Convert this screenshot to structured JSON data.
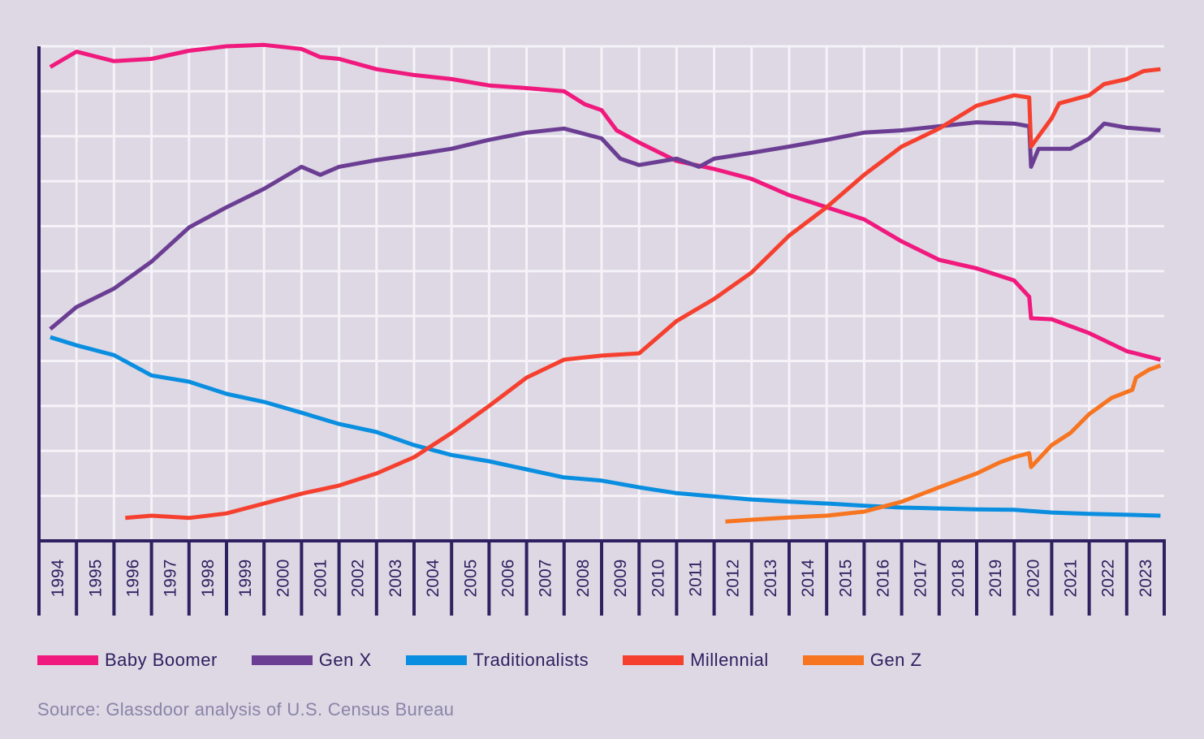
{
  "chart_data": {
    "type": "line",
    "title": "",
    "xlabel": "",
    "ylabel": "",
    "xlim": [
      1994,
      2024
    ],
    "ylim": [
      0,
      11
    ],
    "grid": true,
    "legend_position": "bottom",
    "x_tick_labels": [
      "1994",
      "1995",
      "1996",
      "1997",
      "1998",
      "1999",
      "2000",
      "2001",
      "2002",
      "2003",
      "2004",
      "2005",
      "2006",
      "2007",
      "2008",
      "2009",
      "2010",
      "2011",
      "2012",
      "2013",
      "2014",
      "2015",
      "2016",
      "2017",
      "2018",
      "2019",
      "2020",
      "2021",
      "2022",
      "2023"
    ],
    "series": [
      {
        "name": "Baby Boomer",
        "color": "#f0197d",
        "x": [
          1994.3,
          1995.0,
          1996.0,
          1997.0,
          1998.0,
          1999.0,
          2000.0,
          2001.0,
          2001.5,
          2002.0,
          2003.0,
          2004.0,
          2005.0,
          2006.0,
          2007.0,
          2008.0,
          2008.55,
          2009.0,
          2009.4,
          2010.0,
          2011.0,
          2012.0,
          2013.0,
          2014.0,
          2015.0,
          2016.0,
          2017.0,
          2018.0,
          2019.0,
          2020.0,
          2020.4,
          2020.45,
          2021.0,
          2022.0,
          2023.0,
          2023.9
        ],
        "y": [
          10.54,
          10.88,
          10.67,
          10.72,
          10.9,
          11.0,
          11.03,
          10.94,
          10.76,
          10.72,
          10.49,
          10.36,
          10.27,
          10.13,
          10.07,
          10.0,
          9.71,
          9.58,
          9.13,
          8.86,
          8.45,
          8.27,
          8.05,
          7.69,
          7.42,
          7.15,
          6.66,
          6.25,
          6.06,
          5.79,
          5.43,
          4.95,
          4.93,
          4.62,
          4.22,
          4.03
        ]
      },
      {
        "name": "Gen X",
        "color": "#6b3d93",
        "x": [
          1994.3,
          1995.0,
          1996.0,
          1997.0,
          1998.0,
          1999.0,
          2000.0,
          2001.0,
          2001.5,
          2002.0,
          2003.0,
          2004.0,
          2005.0,
          2006.0,
          2007.0,
          2008.0,
          2009.0,
          2009.5,
          2010.0,
          2011.0,
          2011.6,
          2012.0,
          2013.0,
          2014.0,
          2015.0,
          2016.0,
          2017.0,
          2018.0,
          2019.0,
          2020.0,
          2020.4,
          2020.45,
          2020.65,
          2021.5,
          2022.0,
          2022.4,
          2023.0,
          2023.9
        ],
        "y": [
          4.71,
          5.2,
          5.61,
          6.21,
          6.97,
          7.42,
          7.83,
          8.32,
          8.14,
          8.32,
          8.47,
          8.59,
          8.72,
          8.92,
          9.08,
          9.17,
          8.95,
          8.5,
          8.36,
          8.5,
          8.32,
          8.5,
          8.63,
          8.77,
          8.92,
          9.08,
          9.13,
          9.22,
          9.31,
          9.28,
          9.22,
          8.32,
          8.72,
          8.72,
          8.95,
          9.28,
          9.19,
          9.13
        ]
      },
      {
        "name": "Traditionalists",
        "color": "#0a8ee0",
        "x": [
          1994.3,
          1995.0,
          1996.0,
          1997.0,
          1998.0,
          1999.0,
          2000.0,
          2001.0,
          2002.0,
          2003.0,
          2004.0,
          2005.0,
          2006.0,
          2007.0,
          2008.0,
          2009.0,
          2010.0,
          2011.0,
          2012.0,
          2013.0,
          2014.0,
          2015.0,
          2016.0,
          2017.0,
          2018.0,
          2019.0,
          2020.0,
          2021.0,
          2022.0,
          2023.0,
          2023.9
        ],
        "y": [
          4.53,
          4.35,
          4.13,
          3.68,
          3.54,
          3.27,
          3.09,
          2.85,
          2.6,
          2.42,
          2.13,
          1.91,
          1.77,
          1.59,
          1.41,
          1.34,
          1.19,
          1.06,
          0.99,
          0.92,
          0.87,
          0.83,
          0.78,
          0.74,
          0.72,
          0.7,
          0.69,
          0.63,
          0.6,
          0.58,
          0.56
        ]
      },
      {
        "name": "Millennial",
        "color": "#f5402f",
        "x": [
          1996.3,
          1997.0,
          1998.0,
          1999.0,
          2000.0,
          2001.0,
          2002.0,
          2003.0,
          2004.0,
          2005.0,
          2006.0,
          2007.0,
          2008.0,
          2009.0,
          2010.0,
          2011.0,
          2012.0,
          2013.0,
          2014.0,
          2015.0,
          2016.0,
          2017.0,
          2018.0,
          2019.0,
          2020.0,
          2020.4,
          2020.45,
          2021.0,
          2021.2,
          2022.0,
          2022.4,
          2023.0,
          2023.45,
          2023.9
        ],
        "y": [
          0.51,
          0.56,
          0.51,
          0.61,
          0.83,
          1.05,
          1.23,
          1.5,
          1.86,
          2.4,
          3.0,
          3.63,
          4.03,
          4.12,
          4.17,
          4.89,
          5.38,
          5.97,
          6.79,
          7.42,
          8.14,
          8.77,
          9.17,
          9.68,
          9.91,
          9.86,
          8.77,
          9.4,
          9.73,
          9.91,
          10.16,
          10.27,
          10.45,
          10.49
        ]
      },
      {
        "name": "Gen Z",
        "color": "#f77420",
        "x": [
          2012.3,
          2013.0,
          2014.0,
          2015.0,
          2016.0,
          2017.0,
          2018.0,
          2019.0,
          2019.6,
          2020.0,
          2020.4,
          2020.45,
          2021.0,
          2021.5,
          2022.0,
          2022.6,
          2023.15,
          2023.25,
          2023.6,
          2023.9
        ],
        "y": [
          0.43,
          0.47,
          0.52,
          0.56,
          0.65,
          0.87,
          1.19,
          1.5,
          1.74,
          1.86,
          1.95,
          1.64,
          2.13,
          2.4,
          2.82,
          3.18,
          3.36,
          3.63,
          3.81,
          3.9
        ]
      }
    ],
    "source": "Source: Glassdoor analysis of U.S. Census Bureau"
  },
  "colors": {
    "background": "#ddd8e4",
    "axis": "#2e2160",
    "grid": "#f5f3f8"
  }
}
